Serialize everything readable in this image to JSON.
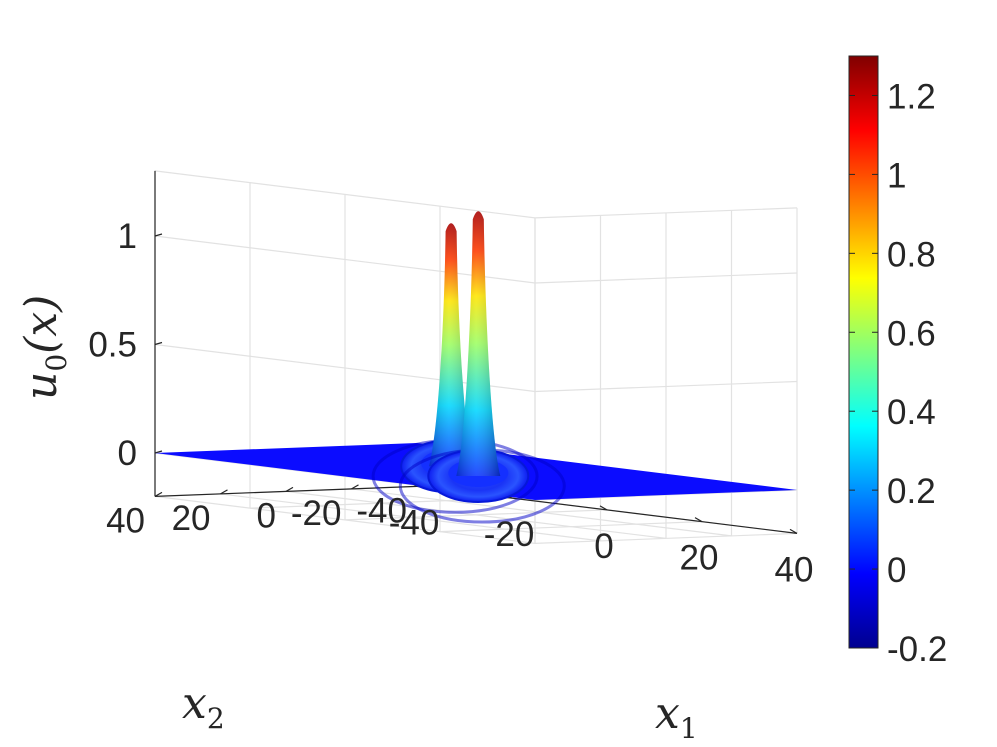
{
  "chart_data": {
    "type": "surface",
    "title": "",
    "xlabel": "x",
    "xlabel_sub": "1",
    "ylabel": "x",
    "ylabel_sub": "2",
    "zlabel_main": "u",
    "zlabel_sub": "0",
    "zlabel_tail": "(x)",
    "xlim": [
      -40,
      40
    ],
    "ylim": [
      -40,
      40
    ],
    "zlim": [
      -0.2,
      1.3
    ],
    "x_ticks": [
      "-40",
      "-20",
      "0",
      "20",
      "40"
    ],
    "y_ticks": [
      "-40",
      "-20",
      "0",
      "20",
      "40"
    ],
    "z_ticks": [
      "0",
      "0.5",
      "1"
    ],
    "grid": true,
    "colormap": "jet",
    "colorbar": {
      "location": "right",
      "limits": [
        -0.2,
        1.3
      ],
      "ticks": [
        "-0.2",
        "0",
        "0.2",
        "0.4",
        "0.6",
        "0.8",
        "1",
        "1.2"
      ]
    },
    "peaks": [
      {
        "x": -8,
        "y": -4,
        "height": 1.12
      },
      {
        "x": 6,
        "y": 8,
        "height": 1.22
      }
    ],
    "base_value": 0
  }
}
